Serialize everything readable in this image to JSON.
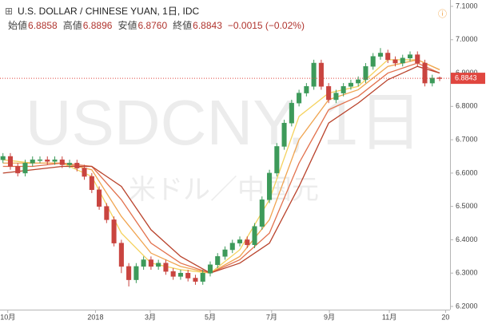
{
  "header": {
    "title": "U.S. DOLLAR / CHINESE YUAN, 1日, IDC",
    "stats": [
      {
        "label": "始値",
        "value": "6.8858"
      },
      {
        "label": "高値",
        "value": "6.8896"
      },
      {
        "label": "安値",
        "value": "6.8760"
      },
      {
        "label": "終値",
        "value": "6.8843"
      }
    ],
    "change": "−0.0015 (−0.02%)"
  },
  "chart_data": {
    "type": "candlestick",
    "watermark": "USDCNY, 1日",
    "watermark_sub": "米ドル／中国元",
    "up_color": "#3d9a5a",
    "down_color": "#c9443f",
    "open": [
      6.64,
      6.65,
      6.62,
      6.6,
      6.63,
      6.64,
      6.64,
      6.635,
      6.64,
      6.625,
      6.63,
      6.615,
      6.59,
      6.55,
      6.5,
      6.46,
      6.39,
      6.32,
      6.28,
      6.32,
      6.34,
      6.32,
      6.33,
      6.305,
      6.29,
      6.3,
      6.285,
      6.275,
      6.3,
      6.325,
      6.35,
      6.37,
      6.39,
      6.4,
      6.385,
      6.44,
      6.52,
      6.6,
      6.68,
      6.75,
      6.81,
      6.84,
      6.86,
      6.93,
      6.86,
      6.82,
      6.84,
      6.86,
      6.87,
      6.88,
      6.92,
      6.95,
      6.96,
      6.94,
      6.93,
      6.945,
      6.955,
      6.93,
      6.87,
      6.8858
    ],
    "high": [
      6.66,
      6.66,
      6.63,
      6.64,
      6.65,
      6.65,
      6.65,
      6.65,
      6.65,
      6.64,
      6.64,
      6.625,
      6.6,
      6.56,
      6.51,
      6.47,
      6.4,
      6.33,
      6.33,
      6.35,
      6.35,
      6.34,
      6.34,
      6.315,
      6.31,
      6.31,
      6.295,
      6.31,
      6.335,
      6.36,
      6.38,
      6.4,
      6.41,
      6.41,
      6.45,
      6.53,
      6.61,
      6.69,
      6.76,
      6.82,
      6.85,
      6.87,
      6.94,
      6.94,
      6.87,
      6.85,
      6.87,
      6.88,
      6.89,
      6.93,
      6.96,
      6.975,
      6.97,
      6.95,
      6.955,
      6.965,
      6.965,
      6.94,
      6.895,
      6.8896
    ],
    "low": [
      6.63,
      6.61,
      6.59,
      6.59,
      6.62,
      6.63,
      6.625,
      6.625,
      6.615,
      6.615,
      6.605,
      6.58,
      6.54,
      6.49,
      6.45,
      6.38,
      6.3,
      6.26,
      6.27,
      6.31,
      6.31,
      6.31,
      6.295,
      6.28,
      6.28,
      6.275,
      6.265,
      6.265,
      6.29,
      6.315,
      6.34,
      6.36,
      6.38,
      6.375,
      6.375,
      6.43,
      6.51,
      6.59,
      6.67,
      6.74,
      6.8,
      6.83,
      6.85,
      6.85,
      6.81,
      6.81,
      6.83,
      6.85,
      6.86,
      6.87,
      6.91,
      6.94,
      6.93,
      6.92,
      6.92,
      6.935,
      6.92,
      6.86,
      6.86,
      6.876
    ],
    "close": [
      6.65,
      6.62,
      6.6,
      6.63,
      6.64,
      6.64,
      6.635,
      6.64,
      6.625,
      6.63,
      6.615,
      6.59,
      6.55,
      6.5,
      6.46,
      6.39,
      6.32,
      6.28,
      6.32,
      6.34,
      6.32,
      6.33,
      6.305,
      6.29,
      6.3,
      6.285,
      6.275,
      6.3,
      6.325,
      6.35,
      6.37,
      6.39,
      6.4,
      6.385,
      6.44,
      6.52,
      6.6,
      6.68,
      6.75,
      6.81,
      6.84,
      6.86,
      6.93,
      6.86,
      6.82,
      6.84,
      6.86,
      6.87,
      6.88,
      6.92,
      6.95,
      6.96,
      6.94,
      6.93,
      6.945,
      6.955,
      6.93,
      6.87,
      6.885,
      6.8843
    ],
    "ma_x": [
      0,
      4,
      8,
      12,
      16,
      20,
      24,
      28,
      32,
      36,
      40,
      44,
      48,
      52,
      56,
      59
    ],
    "series": [
      {
        "color": "#f5d25e",
        "values": [
          6.64,
          6.63,
          6.63,
          6.59,
          6.42,
          6.33,
          6.31,
          6.3,
          6.37,
          6.52,
          6.77,
          6.84,
          6.86,
          6.94,
          6.94,
          6.91
        ]
      },
      {
        "color": "#f0a551",
        "values": [
          6.63,
          6.63,
          6.63,
          6.61,
          6.47,
          6.36,
          6.32,
          6.3,
          6.35,
          6.46,
          6.7,
          6.82,
          6.85,
          6.92,
          6.94,
          6.91
        ]
      },
      {
        "color": "#e2714d",
        "values": [
          6.62,
          6.62,
          6.63,
          6.62,
          6.52,
          6.39,
          6.33,
          6.3,
          6.34,
          6.42,
          6.63,
          6.79,
          6.83,
          6.9,
          6.93,
          6.9
        ]
      },
      {
        "color": "#b9432c",
        "values": [
          6.6,
          6.61,
          6.62,
          6.62,
          6.56,
          6.43,
          6.35,
          6.3,
          6.33,
          6.39,
          6.56,
          6.75,
          6.81,
          6.88,
          6.92,
          6.9
        ]
      }
    ],
    "last_price": 6.8843,
    "last_price_color": "#e0463f",
    "xlim": [
      -0.4,
      60.4
    ],
    "xticks": [
      {
        "value": 0.65,
        "label": "10月"
      },
      {
        "value": 12.5,
        "label": "2018"
      },
      {
        "value": 19.9,
        "label": "3月"
      },
      {
        "value": 28,
        "label": "5月"
      },
      {
        "value": 36.3,
        "label": "7月"
      },
      {
        "value": 44.1,
        "label": "9月"
      },
      {
        "value": 52.2,
        "label": "11月"
      },
      {
        "value": 59.8,
        "label": "20"
      }
    ],
    "ylim": [
      6.2,
      7.1
    ],
    "yticks": [
      {
        "value": 6.2,
        "label": "6.2000"
      },
      {
        "value": 6.3,
        "label": "6.3000"
      },
      {
        "value": 6.4,
        "label": "6.4000"
      },
      {
        "value": 6.5,
        "label": "6.5000"
      },
      {
        "value": 6.6,
        "label": "6.6000"
      },
      {
        "value": 6.7,
        "label": "6.7000"
      },
      {
        "value": 6.8,
        "label": "6.8000"
      },
      {
        "value": 6.9,
        "label": "6.9000"
      },
      {
        "value": 7.0,
        "label": "7.0000"
      },
      {
        "value": 7.1,
        "label": "7.1000"
      }
    ]
  }
}
